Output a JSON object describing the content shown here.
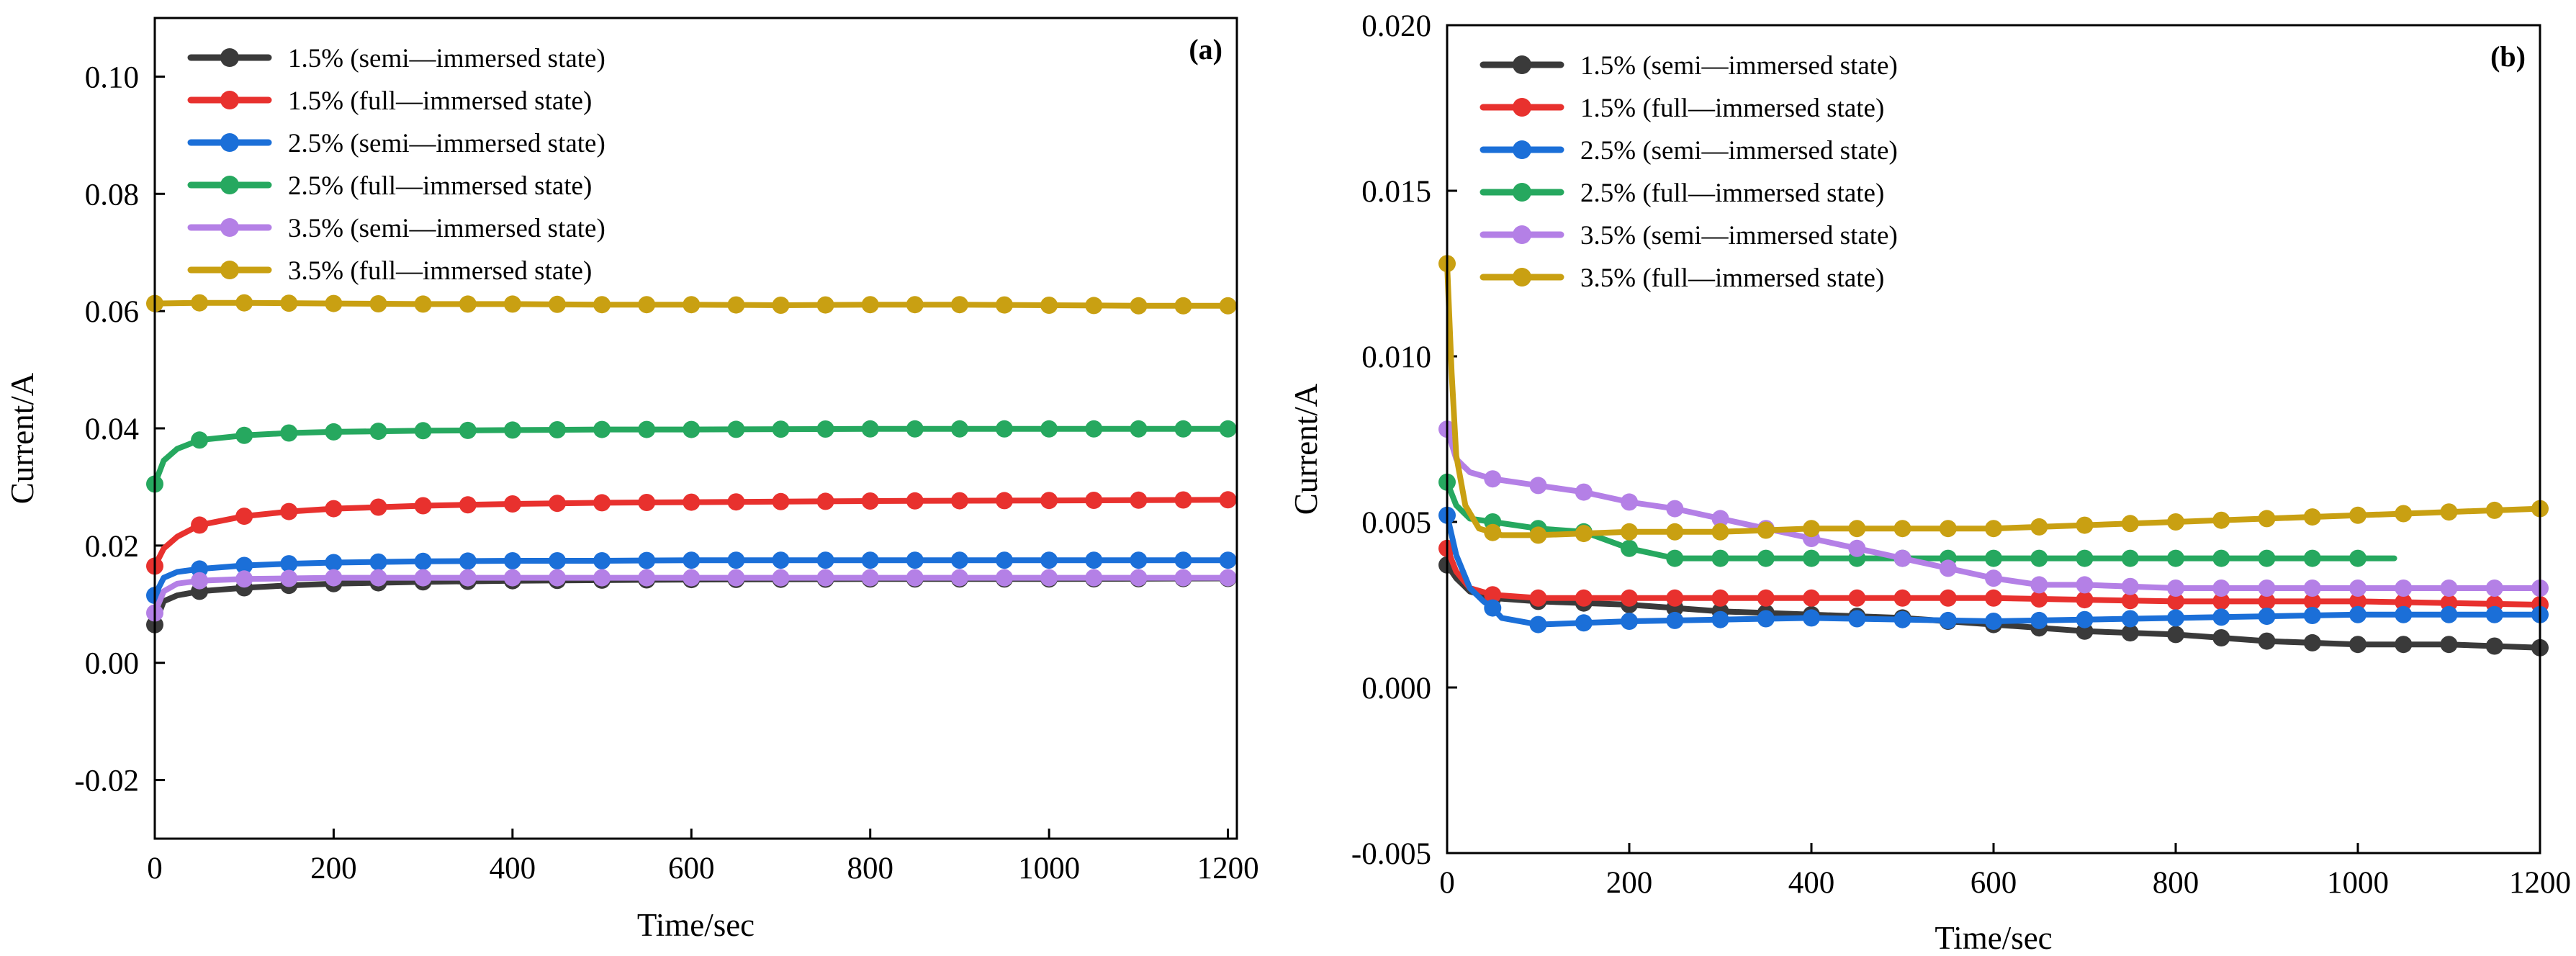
{
  "chart_data": [
    {
      "type": "line",
      "panel_label": "(a)",
      "xlabel": "Time/sec",
      "ylabel": "Current/A",
      "xlim": [
        0,
        1210
      ],
      "ylim": [
        -0.03,
        0.11
      ],
      "xticks": [
        0,
        200,
        400,
        600,
        800,
        1000,
        1200
      ],
      "xtick_labels": [
        "0",
        "200",
        "400",
        "600",
        "800",
        "1000",
        "1200"
      ],
      "yticks": [
        -0.02,
        0.0,
        0.02,
        0.04,
        0.06,
        0.08,
        0.1
      ],
      "ytick_labels": [
        "-0.02",
        "0.00",
        "0.02",
        "0.04",
        "0.06",
        "0.08",
        "0.10"
      ],
      "legend": "top-left",
      "grid": false,
      "series": [
        {
          "name": "1.5% (semi—immersed state)",
          "color": "#3a3a3a",
          "points": [
            [
              0,
              0.0065
            ],
            [
              10,
              0.0105
            ],
            [
              25,
              0.0115
            ],
            [
              50,
              0.0122
            ],
            [
              100,
              0.0128
            ],
            [
              150,
              0.0132
            ],
            [
              200,
              0.0135
            ],
            [
              300,
              0.0138
            ],
            [
              400,
              0.014
            ],
            [
              500,
              0.0141
            ],
            [
              600,
              0.0142
            ],
            [
              800,
              0.0143
            ],
            [
              1000,
              0.0143
            ],
            [
              1200,
              0.0144
            ]
          ]
        },
        {
          "name": "1.5% (full—immersed state)",
          "color": "#e8312e",
          "points": [
            [
              0,
              0.0165
            ],
            [
              10,
              0.0195
            ],
            [
              25,
              0.0215
            ],
            [
              50,
              0.0235
            ],
            [
              100,
              0.025
            ],
            [
              150,
              0.0258
            ],
            [
              200,
              0.0263
            ],
            [
              300,
              0.0268
            ],
            [
              400,
              0.0271
            ],
            [
              500,
              0.0273
            ],
            [
              600,
              0.0274
            ],
            [
              800,
              0.0276
            ],
            [
              1000,
              0.0277
            ],
            [
              1200,
              0.0278
            ]
          ]
        },
        {
          "name": "2.5% (semi—immersed state)",
          "color": "#1b6fd8",
          "points": [
            [
              0,
              0.0115
            ],
            [
              10,
              0.0145
            ],
            [
              25,
              0.0155
            ],
            [
              50,
              0.016
            ],
            [
              100,
              0.0166
            ],
            [
              150,
              0.0169
            ],
            [
              200,
              0.0171
            ],
            [
              300,
              0.0173
            ],
            [
              400,
              0.0174
            ],
            [
              500,
              0.0174
            ],
            [
              600,
              0.0175
            ],
            [
              800,
              0.0175
            ],
            [
              1000,
              0.0175
            ],
            [
              1200,
              0.0175
            ]
          ]
        },
        {
          "name": "2.5% (full—immersed state)",
          "color": "#26a85f",
          "points": [
            [
              0,
              0.0305
            ],
            [
              10,
              0.0345
            ],
            [
              25,
              0.0365
            ],
            [
              50,
              0.038
            ],
            [
              100,
              0.0388
            ],
            [
              150,
              0.0392
            ],
            [
              200,
              0.0394
            ],
            [
              300,
              0.0396
            ],
            [
              400,
              0.0397
            ],
            [
              500,
              0.0398
            ],
            [
              600,
              0.0398
            ],
            [
              800,
              0.0399
            ],
            [
              1000,
              0.0399
            ],
            [
              1200,
              0.0399
            ]
          ]
        },
        {
          "name": "3.5% (semi—immersed state)",
          "color": "#b480e6",
          "points": [
            [
              0,
              0.0085
            ],
            [
              10,
              0.0122
            ],
            [
              25,
              0.0135
            ],
            [
              50,
              0.014
            ],
            [
              100,
              0.0143
            ],
            [
              150,
              0.0144
            ],
            [
              200,
              0.0145
            ],
            [
              300,
              0.0145
            ],
            [
              400,
              0.0145
            ],
            [
              600,
              0.0145
            ],
            [
              800,
              0.0145
            ],
            [
              1000,
              0.0145
            ],
            [
              1200,
              0.0145
            ]
          ]
        },
        {
          "name": "3.5% (full—immersed state)",
          "color": "#c9a012",
          "points": [
            [
              0,
              0.0613
            ],
            [
              50,
              0.0614
            ],
            [
              100,
              0.0614
            ],
            [
              200,
              0.0613
            ],
            [
              300,
              0.0612
            ],
            [
              400,
              0.0612
            ],
            [
              500,
              0.0611
            ],
            [
              600,
              0.0611
            ],
            [
              700,
              0.061
            ],
            [
              800,
              0.0611
            ],
            [
              900,
              0.0611
            ],
            [
              1000,
              0.061
            ],
            [
              1100,
              0.0609
            ],
            [
              1200,
              0.0609
            ]
          ]
        }
      ]
    },
    {
      "type": "line",
      "panel_label": "(b)",
      "xlabel": "Time/sec",
      "ylabel": "Current/A",
      "xlim": [
        0,
        1200
      ],
      "ylim": [
        -0.005,
        0.02
      ],
      "xticks": [
        0,
        200,
        400,
        600,
        800,
        1000,
        1200
      ],
      "xtick_labels": [
        "0",
        "200",
        "400",
        "600",
        "800",
        "1000",
        "1200"
      ],
      "yticks": [
        -0.005,
        0.0,
        0.005,
        0.01,
        0.015,
        0.02
      ],
      "ytick_labels": [
        "-0.005",
        "0.000",
        "0.005",
        "0.010",
        "0.015",
        "0.020"
      ],
      "legend": "top-left",
      "grid": false,
      "series": [
        {
          "name": "1.5% (semi—immersed state)",
          "color": "#3a3a3a",
          "points": [
            [
              0,
              0.0037
            ],
            [
              10,
              0.0033
            ],
            [
              25,
              0.0029
            ],
            [
              50,
              0.0027
            ],
            [
              100,
              0.0026
            ],
            [
              200,
              0.0025
            ],
            [
              300,
              0.0023
            ],
            [
              400,
              0.0022
            ],
            [
              500,
              0.0021
            ],
            [
              600,
              0.0019
            ],
            [
              700,
              0.0017
            ],
            [
              800,
              0.0016
            ],
            [
              900,
              0.0014
            ],
            [
              1000,
              0.0013
            ],
            [
              1100,
              0.0013
            ],
            [
              1200,
              0.0012
            ]
          ]
        },
        {
          "name": "1.5% (full—immersed state)",
          "color": "#e8312e",
          "points": [
            [
              0,
              0.0042
            ],
            [
              10,
              0.0035
            ],
            [
              25,
              0.003
            ],
            [
              50,
              0.0028
            ],
            [
              100,
              0.0027
            ],
            [
              200,
              0.0027
            ],
            [
              400,
              0.0027
            ],
            [
              600,
              0.0027
            ],
            [
              800,
              0.0026
            ],
            [
              1000,
              0.0026
            ],
            [
              1200,
              0.0025
            ]
          ]
        },
        {
          "name": "2.5% (semi—immersed state)",
          "color": "#1b6fd8",
          "points": [
            [
              0,
              0.0052
            ],
            [
              10,
              0.004
            ],
            [
              25,
              0.003
            ],
            [
              40,
              0.0026
            ],
            [
              50,
              0.0024
            ],
            [
              60,
              0.0021
            ],
            [
              100,
              0.0019
            ],
            [
              200,
              0.002
            ],
            [
              400,
              0.0021
            ],
            [
              600,
              0.002
            ],
            [
              800,
              0.0021
            ],
            [
              1000,
              0.0022
            ],
            [
              1200,
              0.0022
            ]
          ]
        },
        {
          "name": "2.5% (full—immersed state)",
          "color": "#26a85f",
          "points": [
            [
              0,
              0.0062
            ],
            [
              10,
              0.0055
            ],
            [
              25,
              0.0051
            ],
            [
              50,
              0.005
            ],
            [
              100,
              0.0048
            ],
            [
              150,
              0.0047
            ],
            [
              200,
              0.0042
            ],
            [
              250,
              0.0039
            ],
            [
              400,
              0.0039
            ],
            [
              600,
              0.0039
            ],
            [
              800,
              0.0039
            ],
            [
              1000,
              0.0039
            ],
            [
              1040,
              0.0039
            ]
          ]
        },
        {
          "name": "3.5% (semi—immersed state)",
          "color": "#b480e6",
          "points": [
            [
              0,
              0.0078
            ],
            [
              10,
              0.0069
            ],
            [
              25,
              0.0065
            ],
            [
              50,
              0.0063
            ],
            [
              100,
              0.0061
            ],
            [
              150,
              0.0059
            ],
            [
              200,
              0.0056
            ],
            [
              250,
              0.0054
            ],
            [
              300,
              0.0051
            ],
            [
              350,
              0.0048
            ],
            [
              400,
              0.0045
            ],
            [
              450,
              0.0042
            ],
            [
              500,
              0.0039
            ],
            [
              550,
              0.0036
            ],
            [
              600,
              0.0033
            ],
            [
              650,
              0.0031
            ],
            [
              700,
              0.0031
            ],
            [
              800,
              0.003
            ],
            [
              1000,
              0.003
            ],
            [
              1200,
              0.003
            ]
          ]
        },
        {
          "name": "3.5% (full—immersed state)",
          "color": "#c9a012",
          "points": [
            [
              0,
              0.0128
            ],
            [
              5,
              0.0095
            ],
            [
              10,
              0.007
            ],
            [
              20,
              0.0055
            ],
            [
              35,
              0.0048
            ],
            [
              60,
              0.0046
            ],
            [
              100,
              0.0046
            ],
            [
              200,
              0.0047
            ],
            [
              300,
              0.0047
            ],
            [
              400,
              0.0048
            ],
            [
              500,
              0.0048
            ],
            [
              600,
              0.0048
            ],
            [
              700,
              0.0049
            ],
            [
              800,
              0.005
            ],
            [
              900,
              0.0051
            ],
            [
              1000,
              0.0052
            ],
            [
              1100,
              0.0053
            ],
            [
              1200,
              0.0054
            ]
          ]
        }
      ]
    }
  ]
}
